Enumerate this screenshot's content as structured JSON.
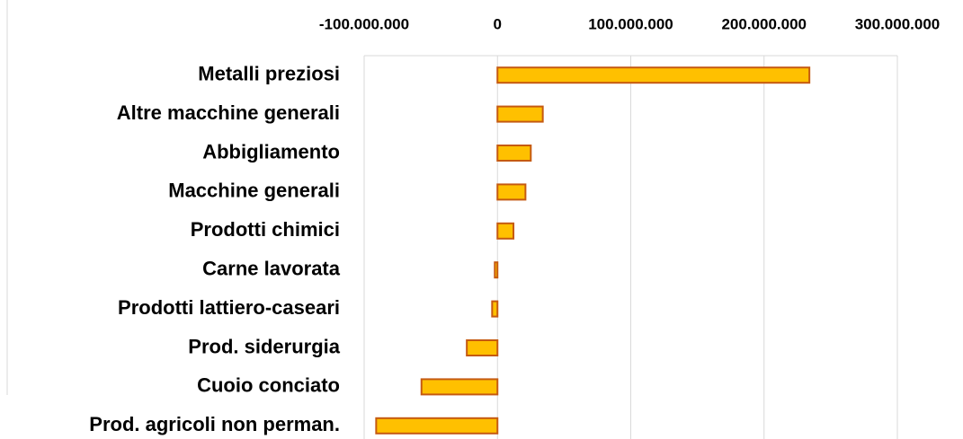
{
  "chart_data": {
    "type": "bar",
    "orientation": "horizontal",
    "categories": [
      "Metalli preziosi",
      "Altre macchine generali",
      "Abbigliamento",
      "Macchine generali",
      "Prodotti chimici",
      "Carne lavorata",
      "Prodotti lattiero-caseari",
      "Prod. siderurgia",
      "Cuoio conciato",
      "Prod. agricoli non perman."
    ],
    "values": [
      234000000,
      34000000,
      25000000,
      21000000,
      12000000,
      -2000000,
      -4000000,
      -23000000,
      -57000000,
      -91000000
    ],
    "color": "#FFC000",
    "edge_color": "#C55A11",
    "xlim": [
      -100000000,
      300000000
    ],
    "xticks": [
      {
        "value": -100000000,
        "label": "-100.000.000"
      },
      0,
      {
        "value": 100000000,
        "label": "100.000.000"
      },
      {
        "value": 200000000,
        "label": "200.000.000"
      },
      {
        "value": 300000000,
        "label": "300.000.000"
      }
    ],
    "grid": true
  }
}
